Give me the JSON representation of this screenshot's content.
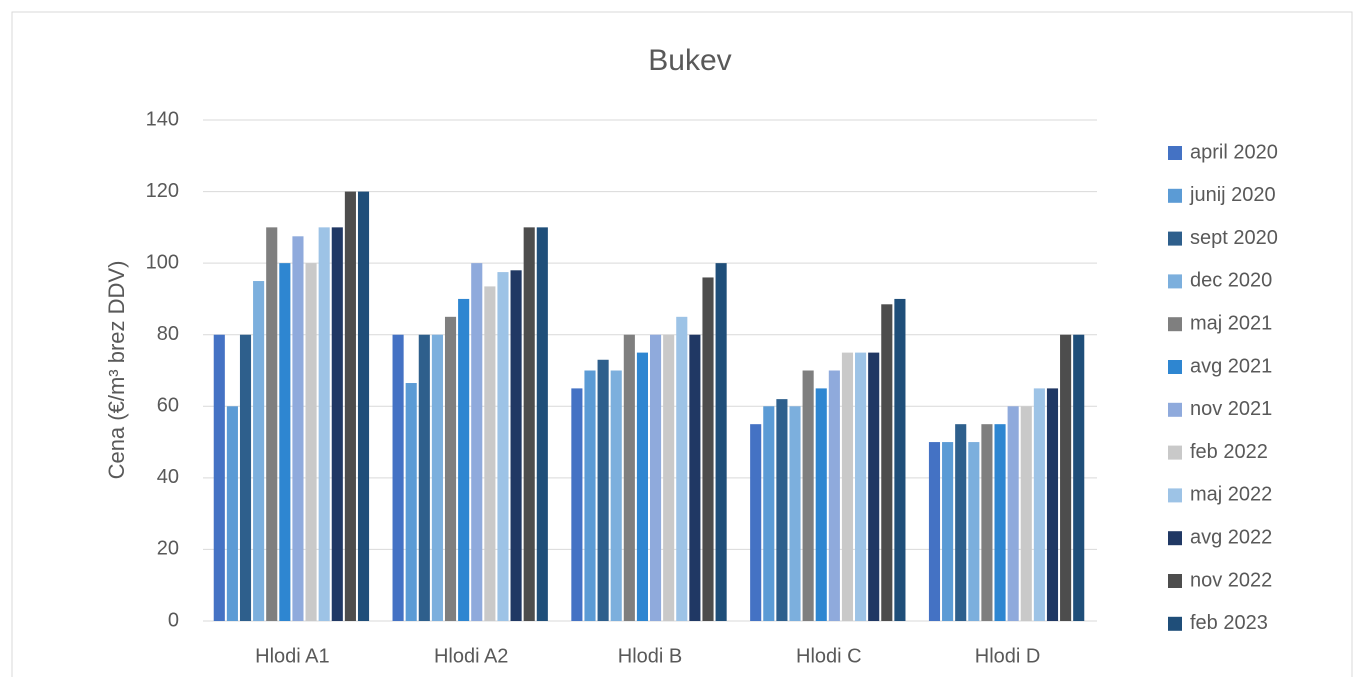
{
  "chart_data": {
    "type": "bar",
    "title": "Bukev",
    "y_label": "Cena (€/m³ brez DDV)",
    "categories": [
      "Hlodi A1",
      "Hlodi A2",
      "Hlodi B",
      "Hlodi C",
      "Hlodi D"
    ],
    "series": [
      {
        "name": "april 2020",
        "color": "#4472c4",
        "values": [
          80,
          80,
          65,
          55,
          50
        ]
      },
      {
        "name": "junij 2020",
        "color": "#5b9bd5",
        "values": [
          60,
          66.5,
          70,
          60,
          50
        ]
      },
      {
        "name": "sept 2020",
        "color": "#2e5f8c",
        "values": [
          80,
          80,
          73,
          62,
          55
        ]
      },
      {
        "name": "dec 2020",
        "color": "#7cafdd",
        "values": [
          95,
          80,
          70,
          60,
          50
        ]
      },
      {
        "name": "maj 2021",
        "color": "#7f7f7f",
        "values": [
          110,
          85,
          80,
          70,
          55
        ]
      },
      {
        "name": "avg 2021",
        "color": "#2e86d1",
        "values": [
          100,
          90,
          75,
          65,
          55
        ]
      },
      {
        "name": "nov 2021",
        "color": "#8faadc",
        "values": [
          107.5,
          100,
          80,
          70,
          60
        ]
      },
      {
        "name": "feb 2022",
        "color": "#c9c9c9",
        "values": [
          100,
          93.5,
          80,
          75,
          60
        ]
      },
      {
        "name": "maj 2022",
        "color": "#9dc3e6",
        "values": [
          110,
          97.5,
          85,
          75,
          65
        ]
      },
      {
        "name": "avg 2022",
        "color": "#203864",
        "values": [
          110,
          98,
          80,
          75,
          65
        ]
      },
      {
        "name": "nov 2022",
        "color": "#4d4d4d",
        "values": [
          120,
          110,
          96,
          88.5,
          80
        ]
      },
      {
        "name": "feb 2023",
        "color": "#1f4e79",
        "values": [
          120,
          110,
          100,
          90,
          80
        ]
      }
    ],
    "ylim": [
      0,
      140
    ],
    "yticks": [
      0,
      20,
      40,
      60,
      80,
      100,
      120,
      140
    ],
    "grid": true,
    "legend": "right"
  }
}
